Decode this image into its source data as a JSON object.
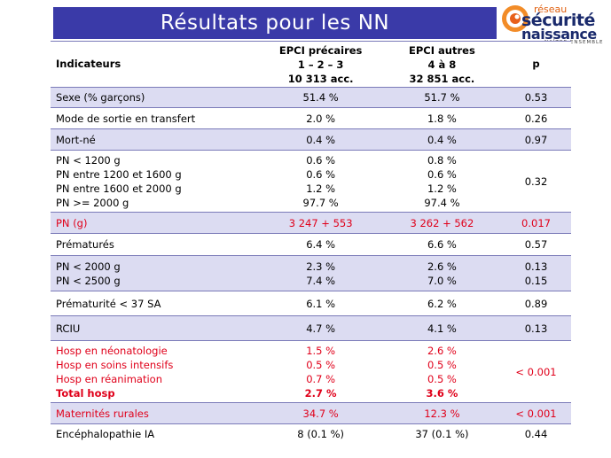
{
  "title": "Résultats pour les NN",
  "logo": {
    "line1": "réseau",
    "line2": "sécurité",
    "line3": "naissance",
    "line4": "NAÎTRE ENSEMBLE"
  },
  "header": {
    "col1": "Indicateurs",
    "col2": [
      "EPCI précaires",
      "1 – 2 – 3",
      "10 313 acc."
    ],
    "col3": [
      "EPCI autres",
      "4 à 8",
      "32 851 acc."
    ],
    "col4": "p"
  },
  "rows": [
    {
      "label": [
        "Sexe (% garçons)"
      ],
      "v1": [
        "51.4 %"
      ],
      "v2": [
        "51.7 %"
      ],
      "p": "0.53"
    },
    {
      "label": [
        "Mode de sortie en transfert"
      ],
      "v1": [
        "2.0 %"
      ],
      "v2": [
        "1.8 %"
      ],
      "p": "0.26"
    },
    {
      "label": [
        "Mort-né"
      ],
      "v1": [
        "0.4 %"
      ],
      "v2": [
        "0.4 %"
      ],
      "p": "0.97"
    },
    {
      "label": [
        "PN < 1200 g",
        "PN entre 1200 et 1600 g",
        "PN entre 1600 et 2000 g",
        "PN >= 2000 g"
      ],
      "v1": [
        "0.6 %",
        "0.6 %",
        "1.2 %",
        "97.7 %"
      ],
      "v2": [
        "0.8 %",
        "0.6 %",
        "1.2 %",
        "97.4 %"
      ],
      "p": "0.32"
    },
    {
      "label": [
        "PN (g)"
      ],
      "v1": [
        "3 247 + 553"
      ],
      "v2": [
        "3 262 + 562"
      ],
      "p": "0.017"
    },
    {
      "label": [
        "Prématurés"
      ],
      "v1": [
        "6.4 %"
      ],
      "v2": [
        "6.6 %"
      ],
      "p": "0.57"
    },
    {
      "label": [
        "PN < 2000 g",
        "PN < 2500 g"
      ],
      "v1": [
        "2.3 %",
        "7.4 %"
      ],
      "v2": [
        "2.6 %",
        "7.0 %"
      ],
      "p": [
        "0.13",
        "0.15"
      ]
    },
    {
      "label": [
        "Prématurité < 37 SA"
      ],
      "v1": [
        "6.1 %"
      ],
      "v2": [
        "6.2 %"
      ],
      "p": "0.89"
    },
    {
      "label": [
        "RCIU"
      ],
      "v1": [
        "4.7 %"
      ],
      "v2": [
        "4.1 %"
      ],
      "p": "0.13"
    },
    {
      "label": [
        "Hosp en néonatologie",
        "Hosp en soins intensifs",
        "Hosp en réanimation",
        "Total hosp"
      ],
      "v1": [
        "1.5 %",
        "0.5 %",
        "0.7 %",
        "2.7 %"
      ],
      "v2": [
        "2.6 %",
        "0.5 %",
        "0.5 %",
        "3.6 %"
      ],
      "p": "< 0.001"
    },
    {
      "label": [
        "Maternités rurales"
      ],
      "v1": [
        "34.7 %"
      ],
      "v2": [
        "12.3 %"
      ],
      "p": "< 0.001"
    },
    {
      "label": [
        "Encéphalopathie IA"
      ],
      "v1": [
        "8 (0.1 %)"
      ],
      "v2": [
        "37 (0.1 %)"
      ],
      "p": "0.44"
    }
  ],
  "colors": {
    "title_bg": "#3a3aa8",
    "row_shade": "#dcdcf2",
    "highlight": "#e0001a"
  }
}
